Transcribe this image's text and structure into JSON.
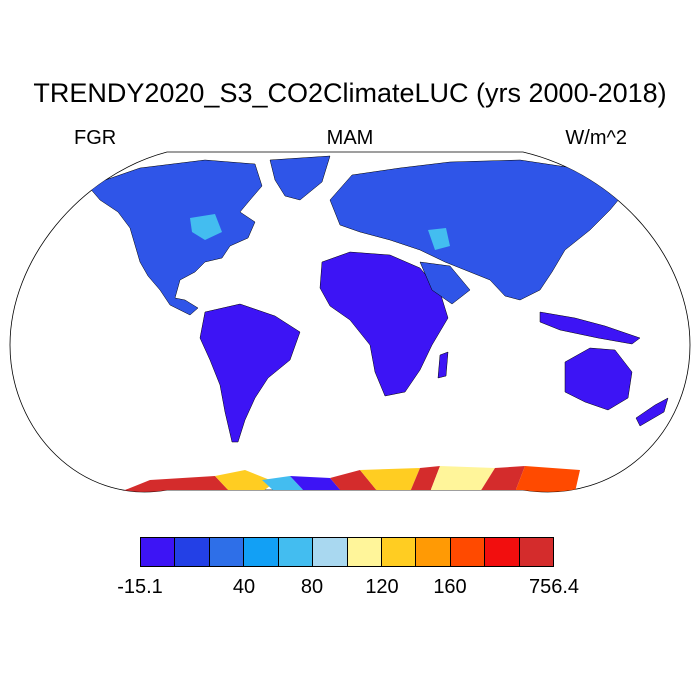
{
  "title": "TRENDY2020_S3_CO2ClimateLUC (yrs 2000-2018)",
  "left_label": "FGR",
  "center_label": "MAM",
  "right_label": "W/m^2",
  "colorbar": {
    "colors": [
      "#3d14f5",
      "#2340e6",
      "#2e6fe8",
      "#12a0f5",
      "#43bdf0",
      "#a9d8f0",
      "#fff59a",
      "#ffcd22",
      "#ff9a05",
      "#ff4a00",
      "#f20e0e",
      "#d42c2c"
    ],
    "tick_labels": [
      "-15.1",
      "40",
      "80",
      "120",
      "160",
      "756.4"
    ]
  },
  "land_colors": {
    "land_low": "#3d14f5",
    "land_main": "#2f55e8",
    "land_light": "#43bdf0"
  }
}
